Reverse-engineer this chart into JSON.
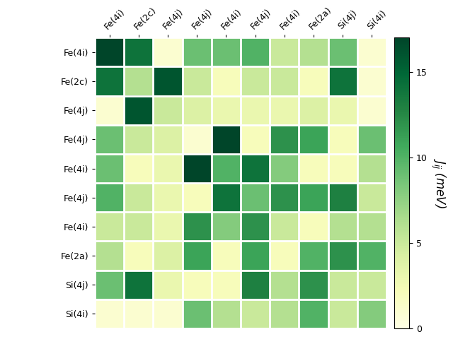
{
  "labels": [
    "Fe(4i)",
    "Fe(2c)",
    "Fe(4j)",
    "Fe(4j)",
    "Fe(4i)",
    "Fe(4j)",
    "Fe(4i)",
    "Fe(2a)",
    "Si(4j)",
    "Si(4i)"
  ],
  "matrix": [
    [
      17,
      14,
      1,
      9,
      9,
      10,
      5,
      6,
      9,
      1
    ],
    [
      14,
      6,
      16,
      5,
      2,
      5,
      5,
      2,
      14,
      1
    ],
    [
      1,
      16,
      5,
      4,
      3,
      3,
      3,
      4,
      3,
      1
    ],
    [
      9,
      5,
      4,
      1,
      17,
      2,
      12,
      11,
      2,
      9
    ],
    [
      9,
      2,
      3,
      17,
      10,
      14,
      8,
      2,
      2,
      6
    ],
    [
      10,
      5,
      3,
      2,
      14,
      9,
      12,
      11,
      13,
      5
    ],
    [
      5,
      5,
      3,
      12,
      8,
      12,
      5,
      2,
      6,
      6
    ],
    [
      6,
      2,
      4,
      11,
      2,
      11,
      2,
      10,
      12,
      10
    ],
    [
      9,
      14,
      3,
      2,
      2,
      13,
      6,
      12,
      5,
      5
    ],
    [
      1,
      1,
      1,
      9,
      6,
      5,
      6,
      10,
      5,
      8
    ]
  ],
  "vmin": 0,
  "vmax": 17,
  "cmap": "YlGn",
  "colorbar_label": "$J_{ij}$ (meV)",
  "colorbar_ticks": [
    0,
    5,
    10,
    15
  ],
  "figsize": [
    6.4,
    4.8
  ],
  "dpi": 100
}
